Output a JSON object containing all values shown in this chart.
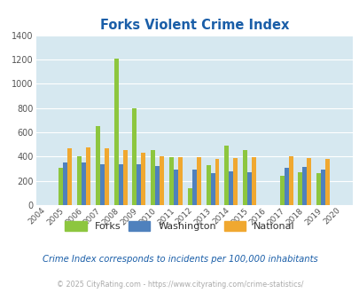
{
  "title": "Forks Violent Crime Index",
  "years": [
    2004,
    2005,
    2006,
    2007,
    2008,
    2009,
    2010,
    2011,
    2012,
    2013,
    2014,
    2015,
    2016,
    2017,
    2018,
    2019,
    2020
  ],
  "forks": [
    0,
    310,
    400,
    650,
    1210,
    800,
    450,
    395,
    140,
    330,
    490,
    450,
    0,
    240,
    270,
    260,
    0
  ],
  "washington": [
    0,
    350,
    350,
    340,
    340,
    340,
    320,
    295,
    295,
    265,
    280,
    270,
    0,
    305,
    315,
    295,
    0
  ],
  "national": [
    0,
    470,
    475,
    470,
    455,
    430,
    405,
    395,
    395,
    380,
    390,
    395,
    0,
    400,
    385,
    380,
    0
  ],
  "forks_color": "#8dc63f",
  "washington_color": "#4f81bd",
  "national_color": "#f0a830",
  "bg_color": "#d6e8f0",
  "title_color": "#1a5ea8",
  "ylim": [
    0,
    1400
  ],
  "yticks": [
    0,
    200,
    400,
    600,
    800,
    1000,
    1200,
    1400
  ],
  "subtitle": "Crime Index corresponds to incidents per 100,000 inhabitants",
  "footnote": "© 2025 CityRating.com - https://www.cityrating.com/crime-statistics/",
  "subtitle_color": "#1a5ea8",
  "footnote_color": "#aaaaaa",
  "grid_color": "#ffffff"
}
